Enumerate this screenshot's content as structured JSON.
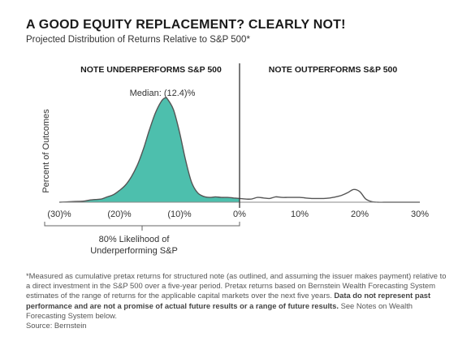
{
  "title": "A GOOD EQUITY REPLACEMENT? CLEARLY NOT!",
  "subtitle": "Projected Distribution of Returns Relative to S&P 500*",
  "chart_data": {
    "type": "area",
    "title": "A GOOD EQUITY REPLACEMENT? CLEARLY NOT!",
    "subtitle": "Projected Distribution of Returns Relative to S&P 500*",
    "xlabel": "",
    "ylabel": "Percent of Outcomes",
    "x_ticks": [
      -30,
      -20,
      -10,
      0,
      10,
      20,
      30
    ],
    "x_tick_labels": [
      "(30)%",
      "(20)%",
      "(10)%",
      "0%",
      "10%",
      "20%",
      "30%"
    ],
    "xlim": [
      -30,
      30
    ],
    "ylim": [
      0,
      100
    ],
    "y_ticks_shown": false,
    "grid": false,
    "shaded_region": {
      "from": -30,
      "to": 0,
      "color": "#4dbfad"
    },
    "divider_x": 0,
    "region_labels": [
      "NOTE UNDERPERFORMS S&P 500",
      "NOTE OUTPERFORMS S&P 500"
    ],
    "median_label": "Median: (12.4)%",
    "bracket_label": "80% Likelihood of Underperforming S&P",
    "x": [
      -30,
      -28,
      -26,
      -25,
      -24,
      -23,
      -22,
      -21,
      -20,
      -19,
      -18,
      -17,
      -16,
      -15,
      -14,
      -13,
      -12.4,
      -12,
      -11,
      -10,
      -9,
      -8,
      -7,
      -6,
      -5,
      -4,
      -3,
      -2,
      -1,
      0,
      1,
      2,
      3,
      4,
      5,
      6,
      7,
      8,
      9,
      10,
      11,
      12,
      13,
      14,
      15,
      16,
      17,
      18,
      19,
      20,
      21,
      22,
      23,
      24,
      25,
      26,
      27,
      28,
      30
    ],
    "values": [
      0,
      0.5,
      1,
      2,
      2.5,
      3,
      5,
      7,
      11,
      16,
      24,
      35,
      50,
      68,
      84,
      95,
      98,
      97,
      87,
      66,
      40,
      19,
      9,
      5.5,
      4.5,
      5,
      4.5,
      4.5,
      4,
      3.5,
      3,
      3,
      4.5,
      4,
      3.5,
      5,
      4.5,
      4.5,
      4.5,
      4.5,
      4,
      3.5,
      3.5,
      3.5,
      4,
      5,
      6.5,
      9,
      12,
      10,
      3,
      0.5,
      0,
      0,
      0,
      0,
      0,
      0,
      0
    ]
  },
  "footnote": {
    "text_before_bold": "*Measured as cumulative pretax returns for structured note (as outlined, and assuming the issuer makes payment) relative to a direct investment in the S&P 500 over a five-year period. Pretax returns based on Bernstein Wealth Forecasting System estimates of the range of returns for the applicable capital markets over the next five years. ",
    "bold": "Data do not represent past performance and are not a promise of actual future results or a range of future results.",
    "text_after_bold": " See Notes on Wealth Forecasting System below.",
    "source": "Source: Bernstein"
  },
  "colors": {
    "fill": "#4dbfad",
    "line": "#555555",
    "divider": "#333333",
    "axis": "#888888"
  }
}
